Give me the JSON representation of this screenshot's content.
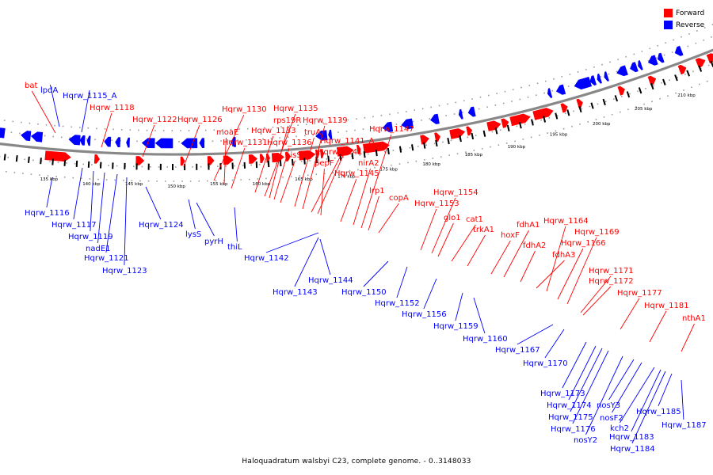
{
  "legend": {
    "forward_label": "Forward",
    "reverse_label": "Reverse",
    "forward_color": "#ff0000",
    "reverse_color": "#0000ff"
  },
  "caption": "Haloquadratum walsbyi C23, complete genome. - 0..3148033",
  "colors": {
    "backbone": "#888888",
    "dots": "#9a9a9a",
    "leader": "#000000",
    "tick": "#000000"
  },
  "kbp_labels": [
    "135 kbp",
    "140 kbp",
    "145 kbp",
    "150 kbp",
    "155 kbp",
    "160 kbp",
    "165 kbp",
    "170 kbp",
    "175 kbp",
    "180 kbp",
    "185 kbp",
    "190 kbp",
    "195 kbp",
    "200 kbp",
    "205 kbp",
    "210 kbp"
  ],
  "forward_genes": [
    "bat",
    "Hqrw_1118",
    "Hqrw_1122",
    "Hqrw_1126",
    "Hqrw_1130",
    "moaE",
    "Hqrw_1131",
    "Hqrw_1133",
    "Hqrw_1135",
    "rps19R",
    "Hqrw_1136",
    "hisS",
    "truA",
    "Hqrw_1139",
    "Hqrw_1141",
    "Hqrw_1141_A",
    "pepF",
    "Hqrw_1145",
    "nirA2",
    "Hqrw_1147",
    "lrp1",
    "copA",
    "Hqrw_1153",
    "Hqrw_1154",
    "glo1",
    "cat1",
    "trkA1",
    "hoxF",
    "fdhA1",
    "fdhA2",
    "fdhA3",
    "Hqrw_1164",
    "Hqrw_1166",
    "Hqrw_1169",
    "Hqrw_1171",
    "Hqrw_1172",
    "Hqrw_1177",
    "Hqrw_1181",
    "nthA1"
  ],
  "reverse_genes": [
    "lpdA",
    "Hqrw_1115_A",
    "Hqrw_1116",
    "Hqrw_1117",
    "Hqrw_1119",
    "nadE1",
    "Hqrw_1121",
    "Hqrw_1123",
    "Hqrw_1124",
    "lysS",
    "pyrH",
    "thiL",
    "Hqrw_1142",
    "Hqrw_1143",
    "Hqrw_1144",
    "Hqrw_1150",
    "Hqrw_1152",
    "Hqrw_1156",
    "Hqrw_1159",
    "Hqrw_1160",
    "Hqrw_1167",
    "Hqrw_1170",
    "Hqrw_1173",
    "Hqrw_1174",
    "Hqrw_1175",
    "Hqrw_1176",
    "nosY2",
    "nosY3",
    "nosF2",
    "kch2",
    "Hqrw_1183",
    "Hqrw_1184",
    "Hqrw_1185",
    "Hqrw_1187"
  ]
}
